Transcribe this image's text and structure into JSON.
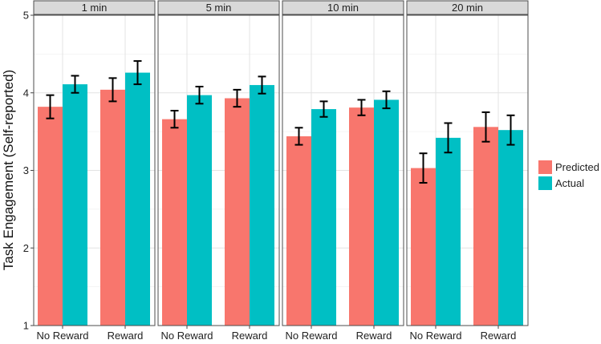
{
  "chart_data": {
    "type": "bar",
    "facet_variable": "time",
    "facets": [
      "1 min",
      "5 min",
      "10 min",
      "20 min"
    ],
    "categories": [
      "No Reward",
      "Reward"
    ],
    "ylabel": "Task Engagement (Self-reported)",
    "xlabel": "",
    "ylim": [
      1,
      5
    ],
    "yticks": [
      "1",
      "2",
      "3",
      "4",
      "5"
    ],
    "grid": true,
    "legend_position": "right",
    "error_bars": true,
    "series": [
      {
        "name": "Predicted",
        "color": "#F8766D",
        "values": [
          [
            3.82,
            4.04
          ],
          [
            3.66,
            3.93
          ],
          [
            3.44,
            3.81
          ],
          [
            3.03,
            3.56
          ]
        ],
        "error": [
          [
            0.15,
            0.15
          ],
          [
            0.11,
            0.11
          ],
          [
            0.11,
            0.1
          ],
          [
            0.19,
            0.19
          ]
        ]
      },
      {
        "name": "Actual",
        "color": "#00BFC4",
        "values": [
          [
            4.11,
            4.26
          ],
          [
            3.97,
            4.1
          ],
          [
            3.79,
            3.91
          ],
          [
            3.42,
            3.52
          ]
        ],
        "error": [
          [
            0.11,
            0.15
          ],
          [
            0.11,
            0.11
          ],
          [
            0.1,
            0.11
          ],
          [
            0.19,
            0.19
          ]
        ]
      }
    ]
  }
}
